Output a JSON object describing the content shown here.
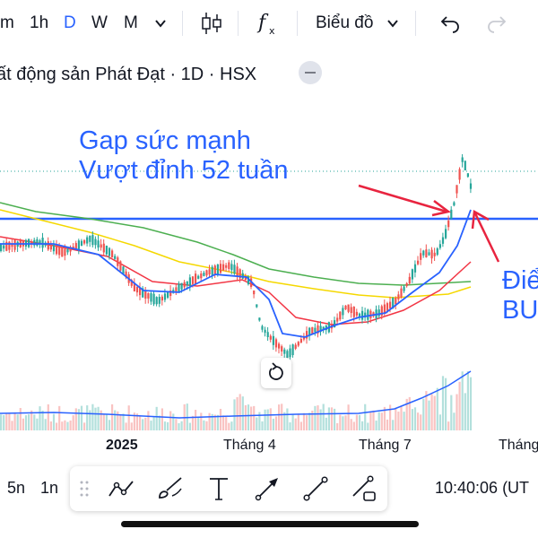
{
  "toolbar": {
    "interval_m": "m",
    "interval_1h": "1h",
    "interval_d": "D",
    "interval_w": "W",
    "interval_mo": "M",
    "chart_type_label": "Biểu đồ"
  },
  "symbol": {
    "title": "ất động sản Phát Đạt · 1D · HSX"
  },
  "annotations": {
    "line1": "Gap sức mạnh",
    "line2": "Vượt đỉnh 52 tuần",
    "right_line1": "Điể",
    "right_line2": "BU"
  },
  "time_axis": {
    "labels": [
      "2025",
      "Tháng 4",
      "Tháng 7",
      "Tháng"
    ]
  },
  "bottom_bar": {
    "interval_5m": "5n",
    "interval_1m": "1n",
    "clock": "10:40:06 (UT"
  },
  "colors": {
    "accent": "#2962ff",
    "up": "#26a69a",
    "down": "#ef5350",
    "ma_blue": "#2962ff",
    "ma_red": "#f23645",
    "ma_yellow": "#f5d800",
    "ma_green": "#4caf50",
    "arrow": "#e8243f"
  },
  "icons": {
    "chevron": "chevron-down-icon",
    "candles": "candlestick-icon",
    "indicators": "fx-indicators-icon",
    "undo": "undo-icon",
    "redo": "redo-icon",
    "reset": "reset-icon"
  }
}
